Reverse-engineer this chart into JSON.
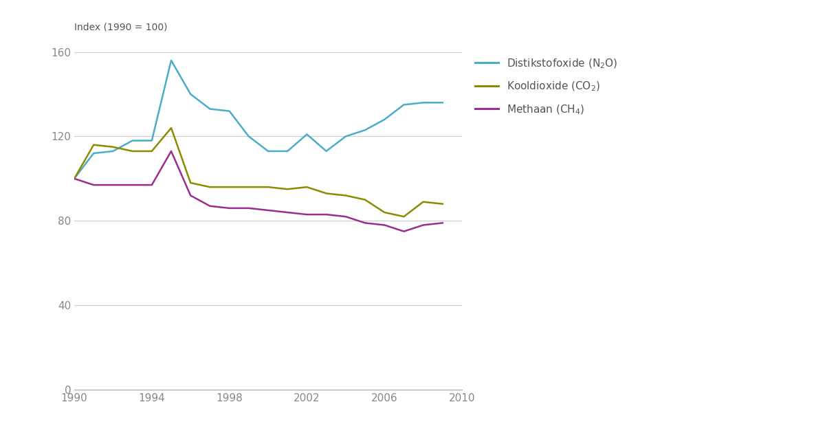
{
  "years": [
    1990,
    1991,
    1992,
    1993,
    1994,
    1995,
    1996,
    1997,
    1998,
    1999,
    2000,
    2001,
    2002,
    2003,
    2004,
    2005,
    2006,
    2007,
    2008,
    2009
  ],
  "n2o": [
    100,
    112,
    113,
    118,
    118,
    156,
    140,
    133,
    132,
    120,
    113,
    113,
    121,
    113,
    120,
    123,
    128,
    135,
    136,
    136
  ],
  "co2": [
    100,
    116,
    115,
    113,
    113,
    124,
    98,
    96,
    96,
    96,
    96,
    95,
    96,
    93,
    92,
    90,
    84,
    82,
    89,
    88
  ],
  "ch4": [
    100,
    97,
    97,
    97,
    97,
    113,
    92,
    87,
    86,
    86,
    85,
    84,
    83,
    83,
    82,
    79,
    78,
    75,
    78,
    79
  ],
  "color_n2o": "#4BACC6",
  "color_co2": "#8B8B00",
  "color_ch4": "#9B2D8E",
  "ylabel": "Index (1990 = 100)",
  "ylim": [
    0,
    160
  ],
  "yticks": [
    0,
    40,
    80,
    120,
    160
  ],
  "xlim": [
    1990,
    2010
  ],
  "xticks": [
    1990,
    1994,
    1998,
    2002,
    2006,
    2010
  ],
  "linewidth": 1.8,
  "background_color": "#ffffff",
  "grid_color": "#cccccc",
  "tick_color": "#888888",
  "label_fontsize": 11,
  "legend_fontsize": 11,
  "legend_labels": [
    "Distikstofoxide (N$_2$O)",
    "Kooldioxide (CO$_2$)",
    "Methaan (CH$_4$)"
  ]
}
